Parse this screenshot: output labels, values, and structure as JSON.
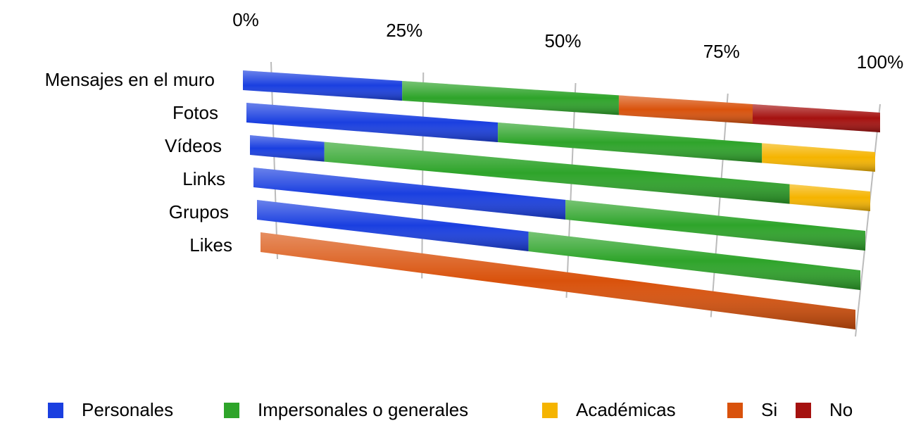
{
  "chart_data": {
    "type": "bar",
    "orientation": "horizontal",
    "stacked": true,
    "categories": [
      "Mensajes en el muro",
      "Fotos",
      "Vídeos",
      "Links",
      "Grupos",
      "Likes"
    ],
    "series": [
      {
        "name": "Personales",
        "color": "#1a3fe0",
        "values": [
          25,
          40,
          12,
          51,
          45,
          null
        ]
      },
      {
        "name": "Impersonales o generales",
        "color": "#2ea42a",
        "values": [
          34,
          42,
          75,
          49,
          55,
          null
        ]
      },
      {
        "name": "Académicas",
        "color": "#f5b400",
        "values": [
          null,
          18,
          13,
          null,
          null,
          null
        ]
      },
      {
        "name": "Si",
        "color": "#d9520c",
        "values": [
          21,
          null,
          null,
          null,
          null,
          100
        ]
      },
      {
        "name": "No",
        "color": "#a5110f",
        "values": [
          20,
          null,
          null,
          null,
          null,
          null
        ]
      }
    ],
    "xlim": [
      0,
      100
    ],
    "xticks": [
      {
        "value": 0,
        "label": "0%"
      },
      {
        "value": 25,
        "label": "25%"
      },
      {
        "value": 50,
        "label": "50%"
      },
      {
        "value": 75,
        "label": "75%"
      },
      {
        "value": 100,
        "label": "100%"
      }
    ],
    "grid": true,
    "legend": "bottom"
  }
}
